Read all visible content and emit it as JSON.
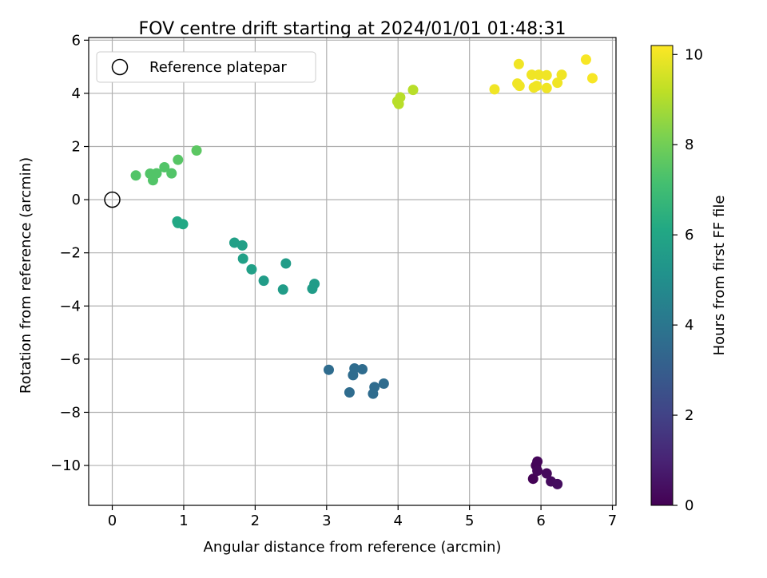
{
  "chart_data": {
    "type": "scatter",
    "title": "FOV centre drift starting at 2024/01/01 01:48:31",
    "xlabel": "Angular distance from reference (arcmin)",
    "ylabel": "Rotation from reference (arcmin)",
    "xlim": [
      -0.33,
      7.05
    ],
    "ylim": [
      -11.5,
      6.1
    ],
    "xticks": [
      0,
      1,
      2,
      3,
      4,
      5,
      6,
      7
    ],
    "xtick_labels": [
      "0",
      "1",
      "2",
      "3",
      "4",
      "5",
      "6",
      "7"
    ],
    "yticks": [
      -10,
      -8,
      -6,
      -4,
      -2,
      0,
      2,
      4,
      6
    ],
    "ytick_labels": [
      "−10",
      "−8",
      "−6",
      "−4",
      "−2",
      "0",
      "2",
      "4",
      "6"
    ],
    "grid": true,
    "legend": {
      "label": "Reference platepar",
      "placement": "top-left"
    },
    "reference_point": {
      "x": 0,
      "y": 0,
      "marker": "open-circle",
      "color": "#000000"
    },
    "colorbar": {
      "label": "Hours from first FF file",
      "range": [
        0,
        10.2
      ],
      "ticks": [
        0,
        2,
        4,
        6,
        8,
        10
      ],
      "tick_labels": [
        "0",
        "2",
        "4",
        "6",
        "8",
        "10"
      ],
      "colormap": "viridis"
    },
    "points": [
      {
        "x": 5.89,
        "y": -10.5,
        "hours": 0.05
      },
      {
        "x": 5.93,
        "y": -10.0,
        "hours": 0.1
      },
      {
        "x": 5.95,
        "y": -9.85,
        "hours": 0.15
      },
      {
        "x": 5.95,
        "y": -10.2,
        "hours": 0.2
      },
      {
        "x": 6.08,
        "y": -10.3,
        "hours": 0.25
      },
      {
        "x": 6.14,
        "y": -10.6,
        "hours": 0.3
      },
      {
        "x": 6.23,
        "y": -10.7,
        "hours": 0.35
      },
      {
        "x": 3.03,
        "y": -6.4,
        "hours": 3.6
      },
      {
        "x": 3.32,
        "y": -7.25,
        "hours": 3.6
      },
      {
        "x": 3.37,
        "y": -6.6,
        "hours": 3.6
      },
      {
        "x": 3.39,
        "y": -6.35,
        "hours": 3.6
      },
      {
        "x": 3.5,
        "y": -6.38,
        "hours": 3.6
      },
      {
        "x": 3.65,
        "y": -7.3,
        "hours": 3.6
      },
      {
        "x": 3.67,
        "y": -7.05,
        "hours": 3.6
      },
      {
        "x": 3.8,
        "y": -6.92,
        "hours": 3.6
      },
      {
        "x": 0.91,
        "y": -0.82,
        "hours": 6.1
      },
      {
        "x": 0.92,
        "y": -0.88,
        "hours": 6.1
      },
      {
        "x": 0.99,
        "y": -0.92,
        "hours": 6.1
      },
      {
        "x": 1.71,
        "y": -1.62,
        "hours": 5.75
      },
      {
        "x": 1.82,
        "y": -1.72,
        "hours": 5.75
      },
      {
        "x": 1.83,
        "y": -2.22,
        "hours": 5.75
      },
      {
        "x": 1.95,
        "y": -2.62,
        "hours": 5.75
      },
      {
        "x": 2.12,
        "y": -3.05,
        "hours": 5.6
      },
      {
        "x": 2.39,
        "y": -3.38,
        "hours": 5.6
      },
      {
        "x": 2.43,
        "y": -2.4,
        "hours": 5.6
      },
      {
        "x": 2.8,
        "y": -3.35,
        "hours": 5.6
      },
      {
        "x": 2.83,
        "y": -3.17,
        "hours": 5.6
      },
      {
        "x": 0.33,
        "y": 0.91,
        "hours": 7.4
      },
      {
        "x": 0.53,
        "y": 0.98,
        "hours": 7.4
      },
      {
        "x": 0.57,
        "y": 0.73,
        "hours": 7.4
      },
      {
        "x": 0.62,
        "y": 0.99,
        "hours": 7.4
      },
      {
        "x": 0.73,
        "y": 1.22,
        "hours": 7.4
      },
      {
        "x": 0.83,
        "y": 0.99,
        "hours": 7.4
      },
      {
        "x": 0.92,
        "y": 1.5,
        "hours": 7.5
      },
      {
        "x": 1.18,
        "y": 1.85,
        "hours": 7.6
      },
      {
        "x": 3.99,
        "y": 3.7,
        "hours": 9.1
      },
      {
        "x": 4.01,
        "y": 3.6,
        "hours": 9.1
      },
      {
        "x": 4.03,
        "y": 3.85,
        "hours": 9.1
      },
      {
        "x": 4.21,
        "y": 4.13,
        "hours": 9.1
      },
      {
        "x": 5.35,
        "y": 4.15,
        "hours": 10.0
      },
      {
        "x": 5.67,
        "y": 4.37,
        "hours": 10.0
      },
      {
        "x": 5.69,
        "y": 5.1,
        "hours": 10.0
      },
      {
        "x": 5.7,
        "y": 4.28,
        "hours": 10.0
      },
      {
        "x": 5.87,
        "y": 4.7,
        "hours": 10.0
      },
      {
        "x": 5.9,
        "y": 4.22,
        "hours": 10.0
      },
      {
        "x": 5.94,
        "y": 4.28,
        "hours": 10.0
      },
      {
        "x": 5.97,
        "y": 4.7,
        "hours": 10.0
      },
      {
        "x": 6.08,
        "y": 4.68,
        "hours": 10.0
      },
      {
        "x": 6.08,
        "y": 4.2,
        "hours": 10.0
      },
      {
        "x": 6.23,
        "y": 4.4,
        "hours": 10.0
      },
      {
        "x": 6.29,
        "y": 4.7,
        "hours": 10.0
      },
      {
        "x": 6.63,
        "y": 5.27,
        "hours": 10.1
      },
      {
        "x": 6.72,
        "y": 4.57,
        "hours": 10.1
      }
    ]
  }
}
